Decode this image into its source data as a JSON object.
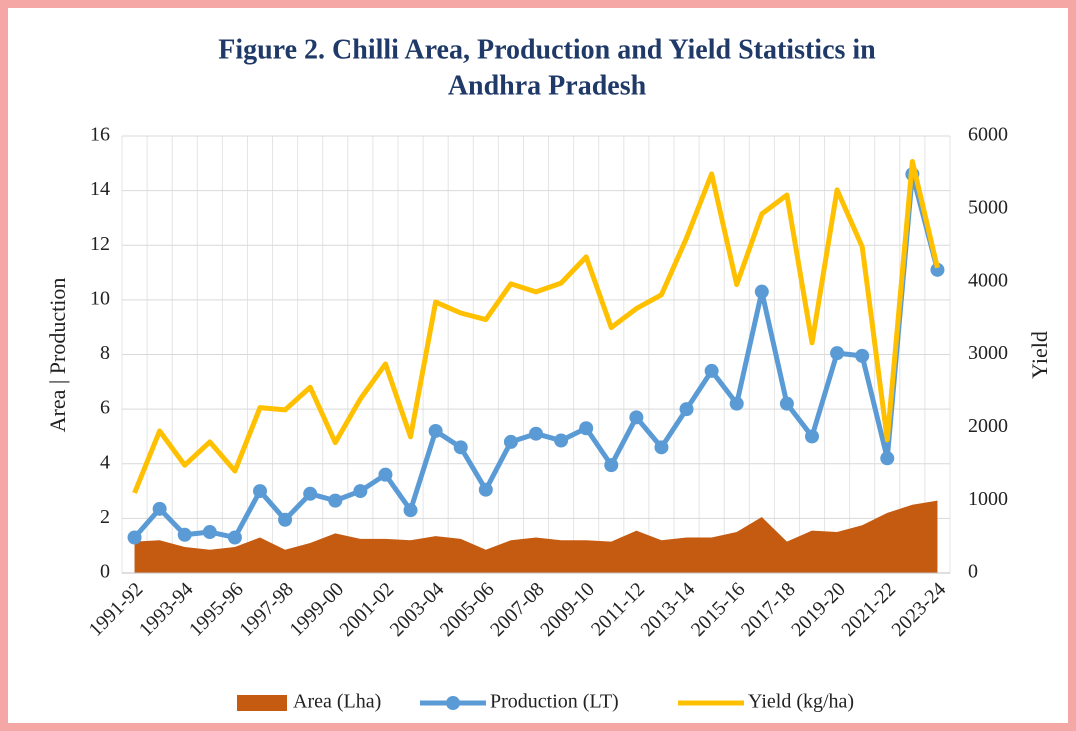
{
  "chart_data": {
    "type": "combo",
    "title": [
      "Figure 2. Chilli Area, Production and Yield Statistics in",
      "Andhra Pradesh"
    ],
    "ylabel": "Area | Production",
    "y2label": "Yield",
    "categories": [
      "1991-92",
      null,
      "1993-94",
      null,
      "1995-96",
      null,
      "1997-98",
      null,
      "1999-00",
      null,
      "2001-02",
      null,
      "2003-04",
      null,
      "2005-06",
      null,
      "2007-08",
      null,
      "2009-10",
      null,
      "2011-12",
      null,
      "2013-14",
      null,
      "2015-16",
      null,
      "2017-18",
      null,
      "2019-20",
      null,
      "2021-22",
      null,
      "2023-24"
    ],
    "series": [
      {
        "name": "Area (Lha)",
        "type": "area",
        "color": "#c55a11",
        "axis": "y",
        "values": [
          1.15,
          1.2,
          0.95,
          0.85,
          0.95,
          1.3,
          0.85,
          1.1,
          1.45,
          1.25,
          1.25,
          1.2,
          1.35,
          1.25,
          0.85,
          1.2,
          1.3,
          1.2,
          1.2,
          1.15,
          1.55,
          1.2,
          1.3,
          1.3,
          1.5,
          2.05,
          1.15,
          1.55,
          1.5,
          1.75,
          2.2,
          2.5,
          2.65
        ]
      },
      {
        "name": "Production (LT)",
        "type": "line",
        "markers": true,
        "color": "#5b9bd5",
        "axis": "y",
        "values": [
          1.3,
          2.35,
          1.4,
          1.5,
          1.3,
          3.0,
          1.95,
          2.9,
          2.65,
          3.0,
          3.6,
          2.3,
          5.2,
          4.6,
          3.05,
          4.8,
          5.1,
          4.85,
          5.3,
          3.95,
          5.7,
          4.6,
          6.0,
          7.4,
          6.2,
          10.3,
          6.2,
          5.0,
          8.05,
          7.95,
          4.2,
          14.6,
          11.1
        ]
      },
      {
        "name": "Yield (kg/ha)",
        "type": "line",
        "markers": false,
        "color": "#ffc000",
        "axis": "y2",
        "values": [
          1100,
          1950,
          1480,
          1800,
          1400,
          2270,
          2240,
          2550,
          1790,
          2390,
          2870,
          1870,
          3720,
          3570,
          3480,
          3970,
          3860,
          3980,
          4340,
          3370,
          3630,
          3820,
          4600,
          5480,
          3960,
          4930,
          5190,
          3160,
          5260,
          4480,
          1830,
          5650,
          4190
        ]
      }
    ],
    "ylim": [
      0,
      16
    ],
    "yticks": [
      0,
      2,
      4,
      6,
      8,
      10,
      12,
      14,
      16
    ],
    "y2lim": [
      0,
      6000
    ],
    "y2ticks": [
      0,
      1000,
      2000,
      3000,
      4000,
      5000,
      6000
    ],
    "grid": true,
    "legend": "bottom"
  }
}
